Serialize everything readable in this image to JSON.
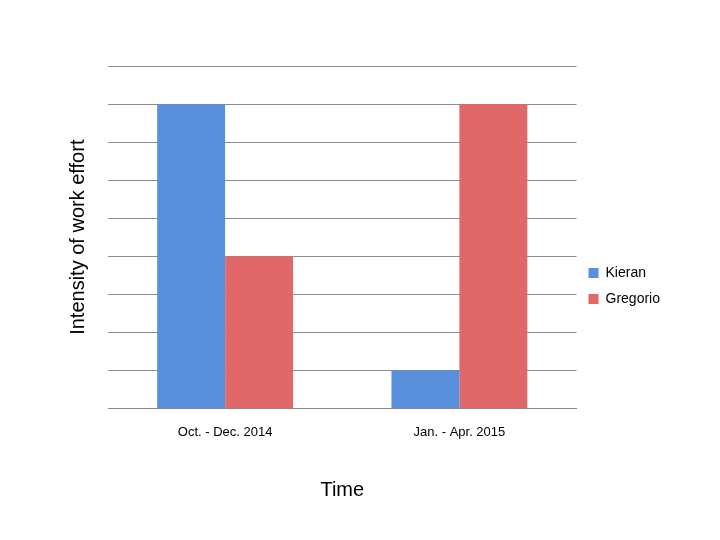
{
  "chart_data": {
    "type": "bar",
    "x_label": "Time",
    "y_label": "Intensity of work effort",
    "categories": [
      "Oct. - Dec. 2014",
      "Jan. - Apr. 2015"
    ],
    "series": [
      {
        "name": "Kieran",
        "color": "#5a8fdb",
        "values": [
          8,
          1
        ]
      },
      {
        "name": "Gregorio",
        "color": "#e06868",
        "values": [
          4,
          8
        ]
      }
    ],
    "ylim": [
      0,
      9
    ],
    "yticks": [
      0,
      1,
      2,
      3,
      4,
      5,
      6,
      7,
      8,
      9
    ],
    "grid": true,
    "legend": "right",
    "tick_labels": "x"
  }
}
